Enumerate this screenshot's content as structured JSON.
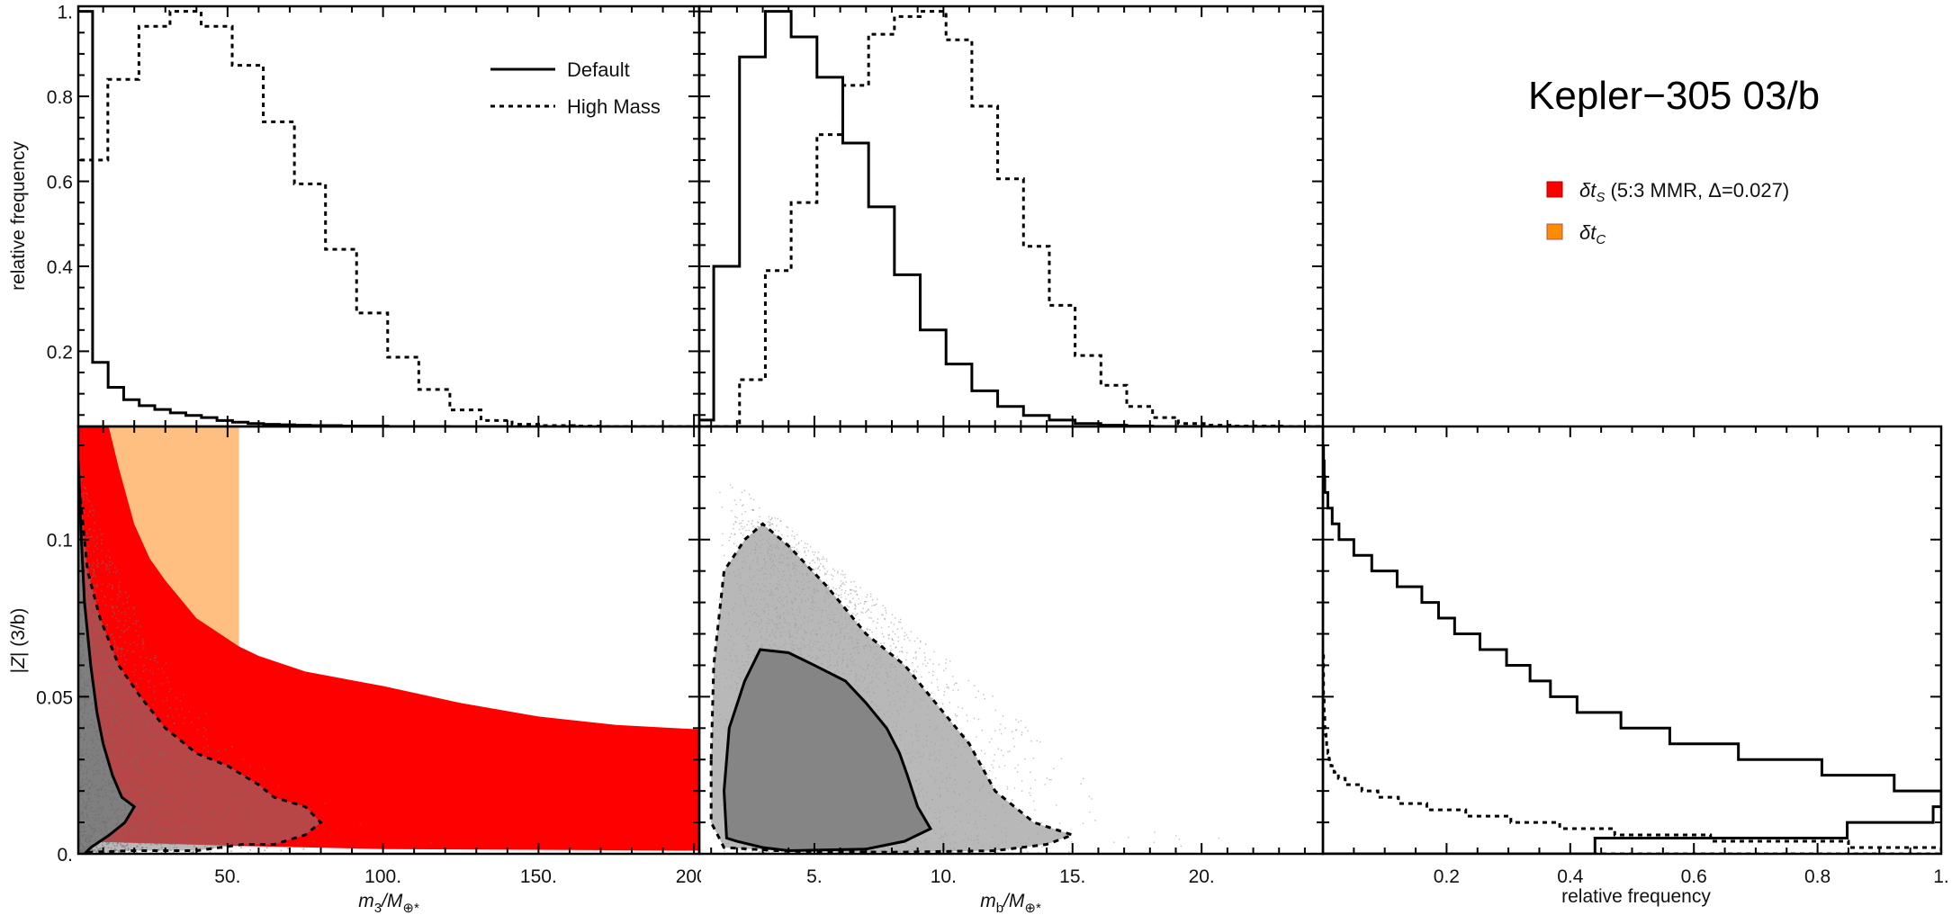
{
  "figure": {
    "title": "Kepler−305 03/b",
    "legend_lines": [
      {
        "label": "Default",
        "style": "solid"
      },
      {
        "label": "High Mass",
        "style": "dashed"
      }
    ],
    "legend_regions": [
      {
        "sym": "δt",
        "sub": "S",
        "rest": " (5:3 MMR, Δ=0.027)",
        "color": "#ff0000"
      },
      {
        "sym": "δt",
        "sub": "C",
        "rest": "",
        "color": "#ff8c00"
      }
    ]
  },
  "chart_data": [
    {
      "panel": "top-left",
      "type": "histogram",
      "ylabel": "relative frequency",
      "xlim": [
        2,
        201.7
      ],
      "ylim": [
        0.023,
        1.012
      ],
      "yticks": [
        {
          "v": 0.2,
          "label": "0.2"
        },
        {
          "v": 0.4,
          "label": "0.4"
        },
        {
          "v": 0.6,
          "label": "0.6"
        },
        {
          "v": 0.8,
          "label": "0.8"
        },
        {
          "v": 1.0,
          "label": "1."
        }
      ],
      "series": [
        {
          "name": "Default",
          "style": "solid",
          "bin_start": 1.6,
          "bin_width": 5,
          "values": [
            1.0,
            0.174,
            0.115,
            0.086,
            0.072,
            0.063,
            0.055,
            0.049,
            0.044,
            0.037,
            0.033,
            0.03,
            0.028,
            0.027,
            0.026,
            0.025,
            0.025,
            0.024,
            0.024,
            0.024,
            0.023,
            0.023,
            0.023,
            0.023
          ]
        },
        {
          "name": "High Mass",
          "style": "dashed",
          "bin_start": 1.5,
          "bin_width": 10,
          "values": [
            0.65,
            0.84,
            0.965,
            1.0,
            0.965,
            0.873,
            0.74,
            0.594,
            0.44,
            0.29,
            0.186,
            0.11,
            0.062,
            0.037,
            0.028,
            0.025,
            0.024,
            0.023,
            0.023,
            0.023
          ]
        }
      ]
    },
    {
      "panel": "top-middle",
      "type": "histogram",
      "xlim": [
        0.54,
        24.7
      ],
      "ylim": [
        0.023,
        1.012
      ],
      "series": [
        {
          "name": "Default",
          "style": "solid",
          "bin_start": 0.1,
          "bin_width": 1,
          "values": [
            0.038,
            0.4,
            0.893,
            1.0,
            0.94,
            0.845,
            0.69,
            0.54,
            0.38,
            0.25,
            0.17,
            0.107,
            0.07,
            0.049,
            0.038,
            0.03,
            0.026,
            0.024,
            0.023,
            0.023
          ]
        },
        {
          "name": "High Mass",
          "style": "dashed",
          "bin_start": 0.1,
          "bin_width": 1,
          "values": [
            0.023,
            0.023,
            0.133,
            0.39,
            0.55,
            0.71,
            0.826,
            0.946,
            0.988,
            1.0,
            0.933,
            0.777,
            0.606,
            0.447,
            0.308,
            0.19,
            0.12,
            0.07,
            0.044,
            0.03,
            0.026,
            0.024,
            0.024,
            0.023,
            0.023
          ]
        }
      ]
    },
    {
      "panel": "bottom-left",
      "type": "scatter",
      "xlabel_parts": [
        {
          "t": "m",
          "it": true
        },
        {
          "t": "3",
          "sub": true
        },
        {
          "t": "/M",
          "it": true
        },
        {
          "t": "⊕*",
          "sub": true
        }
      ],
      "ylabel_parts": [
        {
          "t": "|"
        },
        {
          "t": "Z",
          "it": true
        },
        {
          "t": "| (3/b)"
        }
      ],
      "xlim": [
        2,
        201.7
      ],
      "ylim": [
        0,
        0.136
      ],
      "xticks": [
        {
          "v": 50,
          "label": "50."
        },
        {
          "v": 100,
          "label": "100."
        },
        {
          "v": 150,
          "label": "150."
        },
        {
          "v": 200,
          "label": "200."
        }
      ],
      "yticks": [
        {
          "v": 0,
          "label": "0."
        },
        {
          "v": 0.05,
          "label": "0.05"
        },
        {
          "v": 0.1,
          "label": "0.1"
        }
      ],
      "region_S": {
        "color": "#ff0000",
        "upper": [
          [
            2,
            0.2
          ],
          [
            11.8,
            0.136
          ],
          [
            15,
            0.123
          ],
          [
            20,
            0.105
          ],
          [
            25,
            0.094
          ],
          [
            30,
            0.087
          ],
          [
            40,
            0.075
          ],
          [
            53.7,
            0.066
          ],
          [
            60,
            0.063
          ],
          [
            75,
            0.058
          ],
          [
            100,
            0.0534
          ],
          [
            125,
            0.048
          ],
          [
            150,
            0.0437
          ],
          [
            175,
            0.041
          ],
          [
            201.7,
            0.0396
          ]
        ],
        "lower": [
          [
            2,
            0.004
          ],
          [
            50,
            0.0026
          ],
          [
            100,
            0.0015
          ],
          [
            201.7,
            0.001
          ]
        ]
      },
      "region_C": {
        "color": "#ffbf80",
        "x_max": 53.7
      },
      "contours": [
        {
          "style": "solid",
          "points": [
            [
              2,
              0.125
            ],
            [
              3,
              0.1
            ],
            [
              4,
              0.08
            ],
            [
              6,
              0.06
            ],
            [
              8,
              0.045
            ],
            [
              10,
              0.035
            ],
            [
              13,
              0.025
            ],
            [
              16,
              0.018
            ],
            [
              20,
              0.015
            ],
            [
              17,
              0.01
            ],
            [
              12,
              0.006
            ],
            [
              6,
              0.002
            ],
            [
              4,
              0.0
            ]
          ]
        },
        {
          "style": "dashed",
          "points": [
            [
              2,
              0.12
            ],
            [
              5,
              0.09
            ],
            [
              9,
              0.075
            ],
            [
              15,
              0.06
            ],
            [
              22,
              0.05
            ],
            [
              30,
              0.04
            ],
            [
              40,
              0.032
            ],
            [
              50,
              0.028
            ],
            [
              60,
              0.022
            ],
            [
              65,
              0.018
            ],
            [
              75,
              0.015
            ],
            [
              80,
              0.01
            ],
            [
              75,
              0.006
            ],
            [
              65,
              0.003
            ],
            [
              55,
              0.003
            ],
            [
              40,
              0.001
            ],
            [
              20,
              0.001
            ],
            [
              5,
              0.0005
            ]
          ]
        }
      ]
    },
    {
      "panel": "bottom-middle",
      "type": "scatter",
      "xlabel_parts": [
        {
          "t": "m",
          "it": true
        },
        {
          "t": "b",
          "sub": true
        },
        {
          "t": "/M",
          "it": true
        },
        {
          "t": "⊕*",
          "sub": true
        }
      ],
      "xlim": [
        0.54,
        24.7
      ],
      "ylim": [
        0,
        0.136
      ],
      "xticks": [
        {
          "v": 5,
          "label": "5."
        },
        {
          "v": 10,
          "label": "10."
        },
        {
          "v": 15,
          "label": "15."
        },
        {
          "v": 20,
          "label": "20."
        }
      ],
      "contours": [
        {
          "style": "dashed",
          "points": [
            [
              1,
              0.03
            ],
            [
              1.1,
              0.06
            ],
            [
              1.5,
              0.09
            ],
            [
              2.3,
              0.1
            ],
            [
              3,
              0.105
            ],
            [
              4,
              0.098
            ],
            [
              5.5,
              0.085
            ],
            [
              7,
              0.07
            ],
            [
              8.5,
              0.06
            ],
            [
              10,
              0.045
            ],
            [
              11,
              0.035
            ],
            [
              12,
              0.02
            ],
            [
              13.5,
              0.01
            ],
            [
              15,
              0.006
            ],
            [
              14,
              0.003
            ],
            [
              12,
              0.001
            ],
            [
              8,
              0.0005
            ],
            [
              4,
              0.0008
            ],
            [
              1.5,
              0.002
            ],
            [
              1,
              0.01
            ]
          ]
        },
        {
          "style": "solid",
          "points": [
            [
              1.6,
              0.005
            ],
            [
              1.5,
              0.02
            ],
            [
              1.7,
              0.04
            ],
            [
              2.3,
              0.055
            ],
            [
              2.9,
              0.065
            ],
            [
              4,
              0.064
            ],
            [
              5,
              0.06
            ],
            [
              6.2,
              0.055
            ],
            [
              7,
              0.048
            ],
            [
              7.8,
              0.04
            ],
            [
              8.3,
              0.032
            ],
            [
              8.6,
              0.025
            ],
            [
              9,
              0.015
            ],
            [
              9.5,
              0.008
            ],
            [
              8.5,
              0.004
            ],
            [
              7,
              0.0015
            ],
            [
              4,
              0.001
            ],
            [
              3,
              0.002
            ],
            [
              2,
              0.004
            ]
          ]
        }
      ]
    },
    {
      "panel": "bottom-right",
      "type": "histogram",
      "orientation": "horizontal",
      "xlabel": "relative frequency",
      "xlim": [
        0,
        1.0
      ],
      "ylim": [
        0,
        0.136
      ],
      "xticks": [
        {
          "v": 0.2,
          "label": "0.2"
        },
        {
          "v": 0.4,
          "label": "0.4"
        },
        {
          "v": 0.6,
          "label": "0.6"
        },
        {
          "v": 0.8,
          "label": "0.8"
        },
        {
          "v": 1.0,
          "label": "1."
        }
      ],
      "series": [
        {
          "name": "Default",
          "style": "solid",
          "bin_start": 0,
          "bin_width": 0.005,
          "values": [
            0.44,
            0.848,
            0.987,
            1.0,
            0.924,
            0.807,
            0.672,
            0.561,
            0.482,
            0.411,
            0.368,
            0.335,
            0.297,
            0.254,
            0.213,
            0.187,
            0.16,
            0.12,
            0.079,
            0.05,
            0.026,
            0.015,
            0.008,
            0.003,
            0.002,
            0.001
          ]
        },
        {
          "name": "High Mass",
          "style": "dashed",
          "bin_start": 0,
          "bin_width": 0.002,
          "values": [
            1.0,
            0.85,
            0.627,
            0.472,
            0.383,
            0.304,
            0.231,
            0.168,
            0.122,
            0.089,
            0.063,
            0.036,
            0.025,
            0.018,
            0.013,
            0.01,
            0.008,
            0.006,
            0.005,
            0.004,
            0.003,
            0.003,
            0.002,
            0.002,
            0.002,
            0.001,
            0.001,
            0.001,
            0.001,
            0.001,
            0.001,
            0.001
          ]
        }
      ]
    }
  ]
}
